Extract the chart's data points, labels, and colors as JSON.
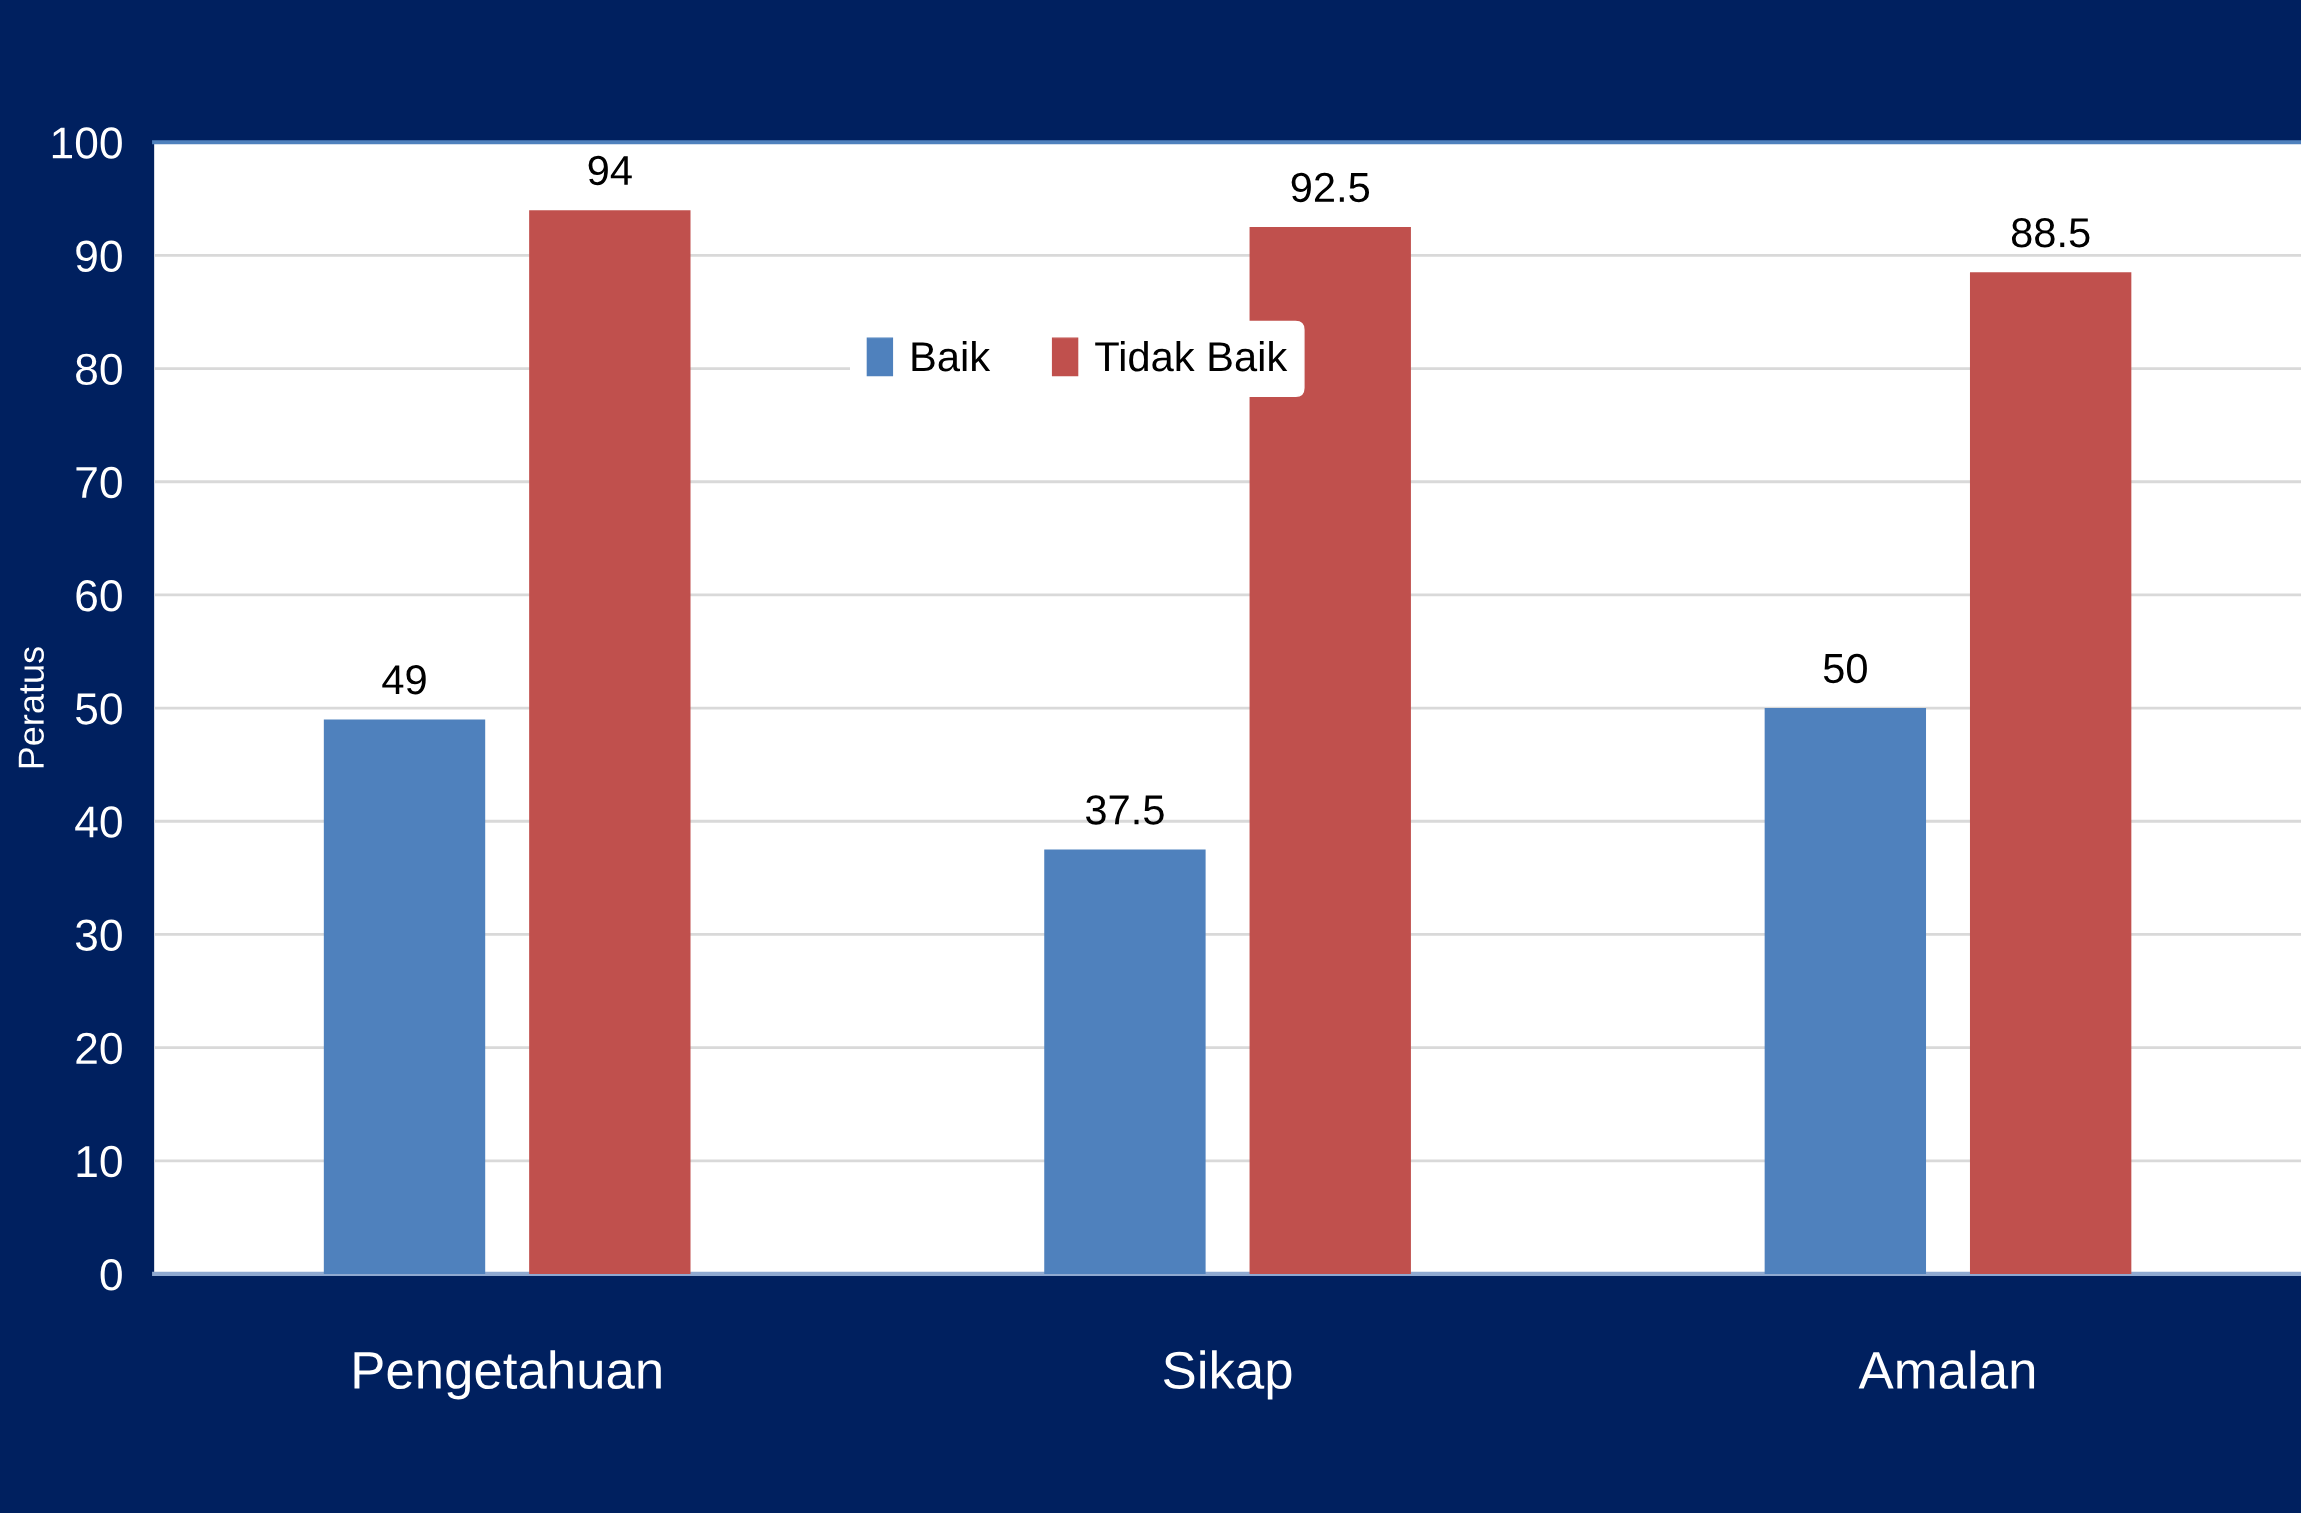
{
  "chart_data": {
    "type": "bar",
    "ylabel": "Peratus",
    "categories": [
      "Pengetahuan",
      "Sikap",
      "Amalan"
    ],
    "series": [
      {
        "name": "Baik",
        "color": "#4f81bd",
        "values": [
          49,
          37.5,
          50
        ]
      },
      {
        "name": "Tidak Baik",
        "color": "#c0504d",
        "values": [
          94,
          92.5,
          88.5
        ]
      }
    ],
    "ylim": [
      0,
      100
    ],
    "yticks": [
      0,
      10,
      20,
      30,
      40,
      50,
      60,
      70,
      80,
      90,
      100
    ],
    "grid": "y",
    "legend": "top",
    "data_labels": true
  }
}
